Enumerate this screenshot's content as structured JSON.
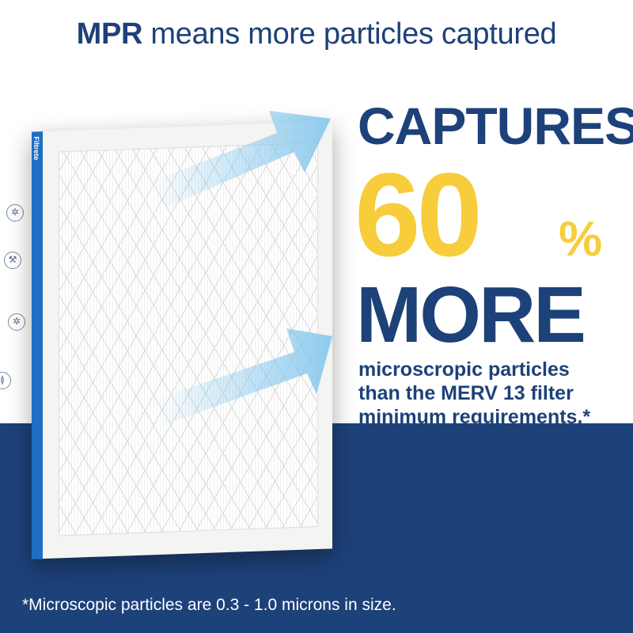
{
  "title": {
    "bold": "MPR",
    "rest": " means more particles captured"
  },
  "product": {
    "brand": "Filtrete"
  },
  "headline": {
    "line1": "CAPTURES",
    "number": "60",
    "percent": "%",
    "line3": "MORE"
  },
  "subtext": [
    "microscropic particles",
    "than the MERV 13 filter",
    "minimum requirements.*"
  ],
  "footnote": "*Microscopic particles are 0.3 - 1.0 microns in size.",
  "icons": [
    "gear-icon",
    "wrench-icon",
    "gear-icon",
    "airflow-icon"
  ],
  "colors": {
    "navy": "#1d4179",
    "yellow": "#f7cd3c",
    "arrow": "#7cc4ec",
    "filter_edge": "#1f6ec4"
  }
}
